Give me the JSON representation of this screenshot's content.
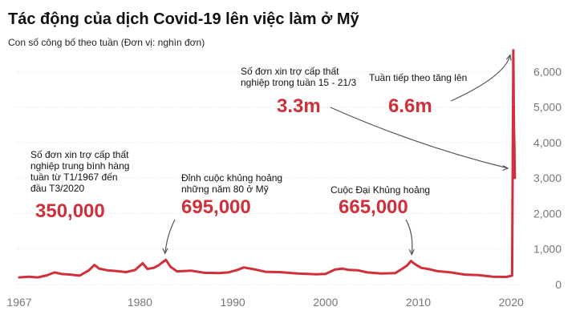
{
  "chart_data": {
    "type": "line",
    "title": "Tác động của dịch Covid-19 lên việc làm ở Mỹ",
    "subtitle": "Con số công bố theo tuần (Đơn vị: nghìn đơn)",
    "xlabel": "",
    "ylabel": "",
    "xlim": [
      1967,
      2020.5
    ],
    "ylim": [
      0,
      7000
    ],
    "grid": true,
    "color": "#d0303a",
    "x_ticks": [
      "1967",
      "1980",
      "1990",
      "2000",
      "2010",
      "2020"
    ],
    "y_ticks": [
      "0",
      "1,000",
      "2,000",
      "3,000",
      "4,000",
      "5,000",
      "6,000"
    ],
    "series": [
      {
        "x": [
          1967.0,
          1968.0,
          1969.0,
          1970.0,
          1970.8,
          1971.5,
          1972.5,
          1973.5,
          1974.5,
          1975.1,
          1975.6,
          1976.5,
          1977.5,
          1978.5,
          1979.5,
          1980.3,
          1980.8,
          1981.5,
          1982.0,
          1982.4,
          1982.8,
          1983.3,
          1984.0,
          1985.5,
          1987.0,
          1988.5,
          1989.5,
          1990.5,
          1991.2,
          1992.5,
          1993.5,
          1995.0,
          1997.0,
          1999.0,
          2000.0,
          2001.0,
          2001.8,
          2002.5,
          2003.5,
          2004.5,
          2006.0,
          2007.5,
          2008.3,
          2008.8,
          2009.2,
          2009.6,
          2010.3,
          2011.0,
          2012.0,
          2013.5,
          2015.0,
          2016.5,
          2018.0,
          2019.5,
          2020.1,
          2020.16,
          2020.23,
          2020.3,
          2020.35,
          2020.4
        ],
        "values": [
          200,
          220,
          200,
          260,
          340,
          300,
          280,
          250,
          400,
          550,
          450,
          400,
          380,
          350,
          410,
          600,
          440,
          470,
          540,
          620,
          695,
          500,
          370,
          390,
          330,
          320,
          340,
          410,
          480,
          420,
          360,
          350,
          310,
          290,
          300,
          420,
          450,
          410,
          400,
          340,
          310,
          320,
          450,
          540,
          665,
          580,
          470,
          440,
          380,
          340,
          280,
          265,
          220,
          215,
          250,
          3300,
          6600,
          4400,
          3800,
          3000
        ]
      }
    ],
    "annotations": [
      {
        "lines": [
          "Số đơn xin trợ cấp thất",
          "nghiệp trung bình hàng",
          "tuần từ T1/1967 đến",
          "đầu T3/2020"
        ],
        "value": "350,000"
      },
      {
        "lines": [
          "Đỉnh cuộc khủng hoảng",
          "những năm 80 ở Mỹ"
        ],
        "value": "695,000"
      },
      {
        "lines": [
          "Cuộc Đại Khủng hoảng"
        ],
        "value": "665,000"
      },
      {
        "lines": [
          "Số đơn xin trợ cấp thất",
          "nghiệp trong tuần 15 - 21/3"
        ],
        "value": "3.3m"
      },
      {
        "lines": [
          "Tuần tiếp theo tăng lên"
        ],
        "value": "6.6m"
      }
    ]
  }
}
